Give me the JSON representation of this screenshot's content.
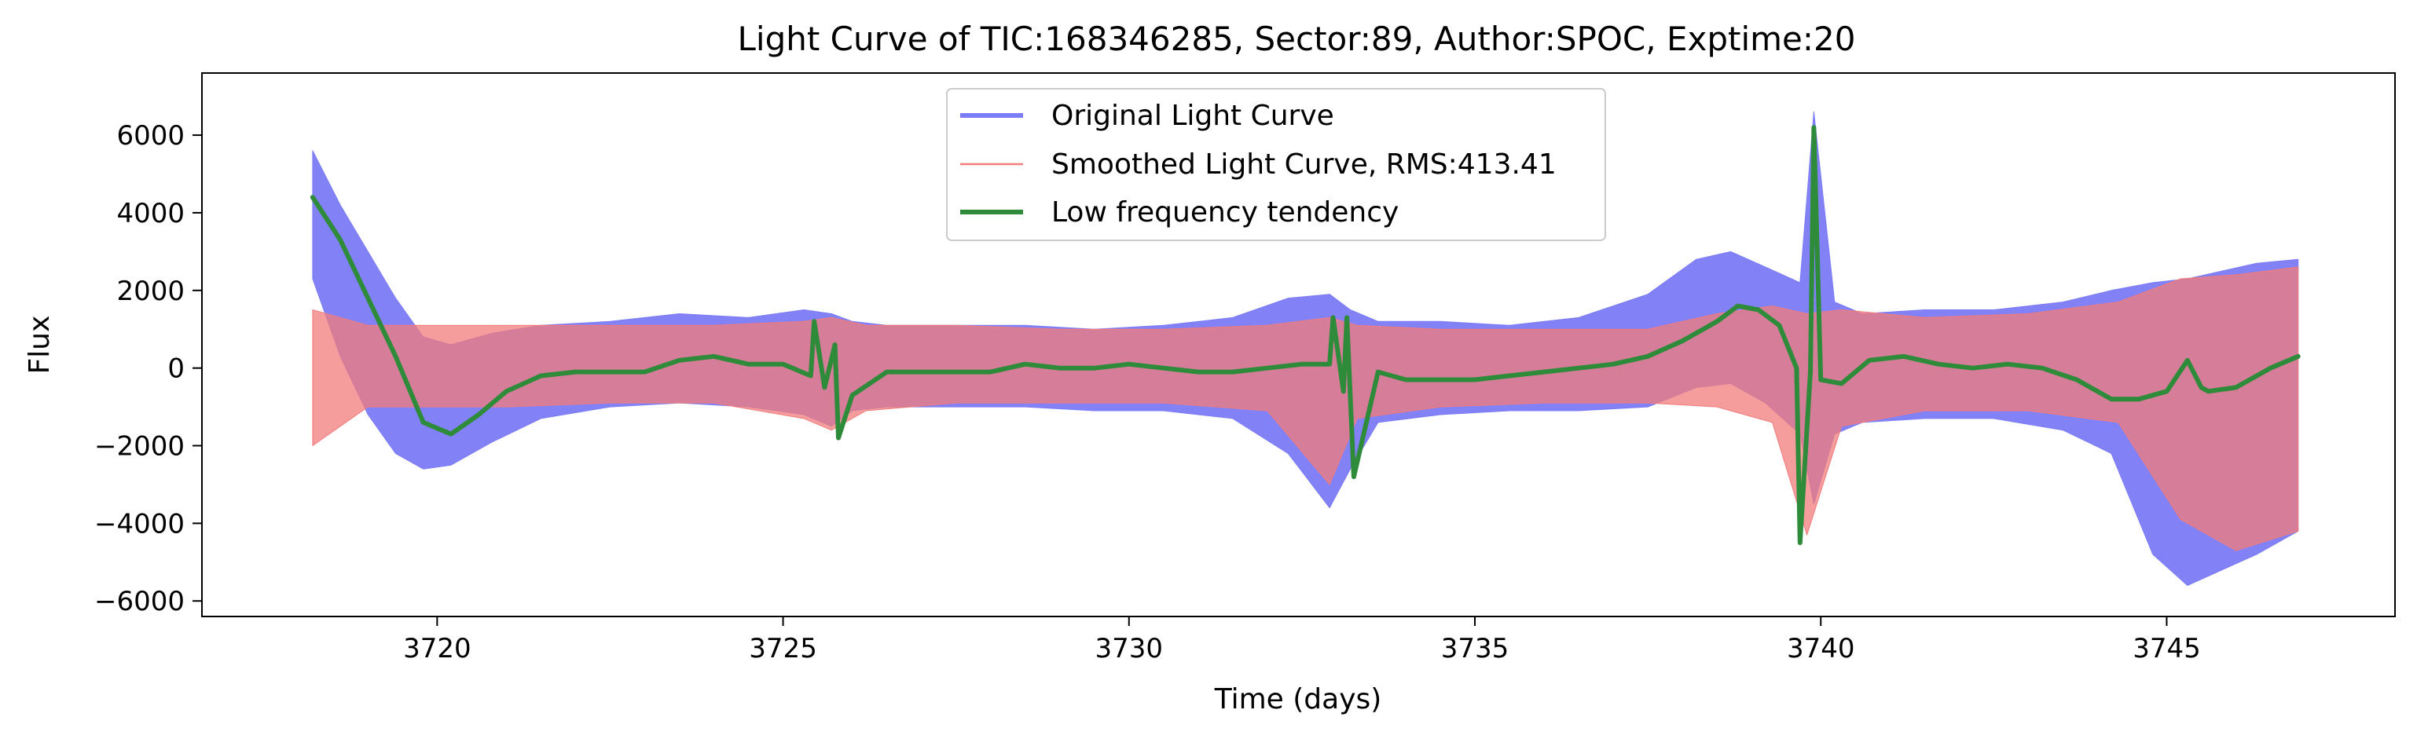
{
  "chart_data": {
    "type": "line",
    "title": "Light Curve of TIC:168346285, Sector:89, Author:SPOC, Exptime:20",
    "xlabel": "Time (days)",
    "ylabel": "Flux",
    "xlim": [
      3716.6,
      3748.3
    ],
    "ylim": [
      -6400,
      7600
    ],
    "xticks": [
      3720,
      3725,
      3730,
      3735,
      3740,
      3745
    ],
    "xtick_labels": [
      "3720",
      "3725",
      "3730",
      "3735",
      "3740",
      "3745"
    ],
    "yticks": [
      -6000,
      -4000,
      -2000,
      0,
      2000,
      4000,
      6000
    ],
    "ytick_labels": [
      "−6000",
      "−4000",
      "−2000",
      "0",
      "2000",
      "4000",
      "6000"
    ],
    "grid": false,
    "legend_position": "upper-center",
    "series": [
      {
        "name": "Original Light Curve",
        "color": "#7b7bf5",
        "style": "band",
        "x": [
          3718.2,
          3718.6,
          3719.0,
          3719.4,
          3719.8,
          3720.2,
          3720.8,
          3721.5,
          3722.5,
          3723.5,
          3724.5,
          3725.3,
          3725.7,
          3726.0,
          3726.5,
          3727.5,
          3728.5,
          3729.5,
          3730.5,
          3731.5,
          3732.3,
          3732.9,
          3733.2,
          3733.6,
          3734.5,
          3735.5,
          3736.5,
          3737.5,
          3738.2,
          3738.7,
          3739.2,
          3739.7,
          3739.9,
          3740.2,
          3740.6,
          3741.5,
          3742.5,
          3743.5,
          3744.2,
          3744.8,
          3745.3,
          3745.8,
          3746.3,
          3746.9
        ],
        "upper": [
          5600,
          4200,
          3000,
          1800,
          800,
          600,
          900,
          1100,
          1200,
          1400,
          1300,
          1500,
          1400,
          1200,
          1100,
          1100,
          1100,
          1000,
          1100,
          1300,
          1800,
          1900,
          1500,
          1200,
          1200,
          1100,
          1300,
          1900,
          2800,
          3000,
          2600,
          2200,
          6600,
          1700,
          1400,
          1500,
          1500,
          1700,
          2000,
          2200,
          2300,
          2500,
          2700,
          2800
        ],
        "lower": [
          2300,
          300,
          -1200,
          -2200,
          -2600,
          -2500,
          -1900,
          -1300,
          -1000,
          -900,
          -1000,
          -1200,
          -1500,
          -1100,
          -1000,
          -1000,
          -1000,
          -1100,
          -1100,
          -1300,
          -2200,
          -3600,
          -2600,
          -1400,
          -1200,
          -1100,
          -1100,
          -1000,
          -500,
          -400,
          -900,
          -1700,
          -3500,
          -1700,
          -1400,
          -1300,
          -1300,
          -1600,
          -2200,
          -4800,
          -5600,
          -5200,
          -4800,
          -4200
        ]
      },
      {
        "name": "Smoothed Light Curve, RMS:413.41",
        "color": "#f27b7b",
        "style": "band",
        "x": [
          3718.2,
          3719.0,
          3720.0,
          3721.0,
          3722.5,
          3724.0,
          3725.3,
          3725.7,
          3726.2,
          3727.5,
          3729.0,
          3730.5,
          3732.0,
          3732.9,
          3733.3,
          3734.5,
          3736.0,
          3737.5,
          3738.5,
          3739.3,
          3739.8,
          3740.3,
          3741.5,
          3743.0,
          3744.3,
          3745.2,
          3746.0,
          3746.9
        ],
        "upper": [
          1500,
          1100,
          1100,
          1100,
          1100,
          1100,
          1200,
          1300,
          1100,
          1100,
          1000,
          1000,
          1100,
          1300,
          1100,
          1000,
          1000,
          1000,
          1400,
          1600,
          1400,
          1500,
          1300,
          1400,
          1700,
          2300,
          2400,
          2600
        ],
        "lower": [
          -2000,
          -1000,
          -1000,
          -1000,
          -900,
          -900,
          -1300,
          -1600,
          -1100,
          -900,
          -900,
          -900,
          -1100,
          -3000,
          -1300,
          -1000,
          -900,
          -900,
          -1000,
          -1400,
          -4300,
          -1500,
          -1100,
          -1100,
          -1400,
          -3900,
          -4700,
          -4200
        ]
      },
      {
        "name": "Low frequency tendency",
        "color": "#2e8b3a",
        "style": "line",
        "x": [
          3718.2,
          3718.6,
          3719.0,
          3719.4,
          3719.8,
          3720.2,
          3720.6,
          3721.0,
          3721.5,
          3722.0,
          3722.5,
          3723.0,
          3723.5,
          3724.0,
          3724.5,
          3725.0,
          3725.4,
          3725.45,
          3725.6,
          3725.75,
          3725.8,
          3726.0,
          3726.5,
          3727.0,
          3727.5,
          3728.0,
          3728.5,
          3729.0,
          3729.5,
          3730.0,
          3730.5,
          3731.0,
          3731.5,
          3732.0,
          3732.5,
          3732.9,
          3732.95,
          3733.1,
          3733.15,
          3733.25,
          3733.6,
          3734.0,
          3734.5,
          3735.0,
          3735.5,
          3736.0,
          3736.5,
          3737.0,
          3737.5,
          3738.0,
          3738.5,
          3738.8,
          3739.1,
          3739.4,
          3739.65,
          3739.7,
          3739.85,
          3739.9,
          3740.0,
          3740.3,
          3740.7,
          3741.2,
          3741.7,
          3742.2,
          3742.7,
          3743.2,
          3743.7,
          3744.2,
          3744.6,
          3745.0,
          3745.3,
          3745.5,
          3745.6,
          3746.0,
          3746.5,
          3746.9
        ],
        "y": [
          4400,
          3300,
          1800,
          300,
          -1400,
          -1700,
          -1200,
          -600,
          -200,
          -100,
          -100,
          -100,
          200,
          300,
          100,
          100,
          -200,
          1200,
          -500,
          600,
          -1800,
          -700,
          -100,
          -100,
          -100,
          -100,
          100,
          0,
          0,
          100,
          0,
          -100,
          -100,
          0,
          100,
          100,
          1300,
          -600,
          1300,
          -2800,
          -100,
          -300,
          -300,
          -300,
          -200,
          -100,
          0,
          100,
          300,
          700,
          1200,
          1600,
          1500,
          1100,
          0,
          -4500,
          -100,
          6200,
          -300,
          -400,
          200,
          300,
          100,
          0,
          100,
          0,
          -300,
          -800,
          -800,
          -600,
          200,
          -500,
          -600,
          -500,
          0,
          300
        ]
      }
    ]
  }
}
